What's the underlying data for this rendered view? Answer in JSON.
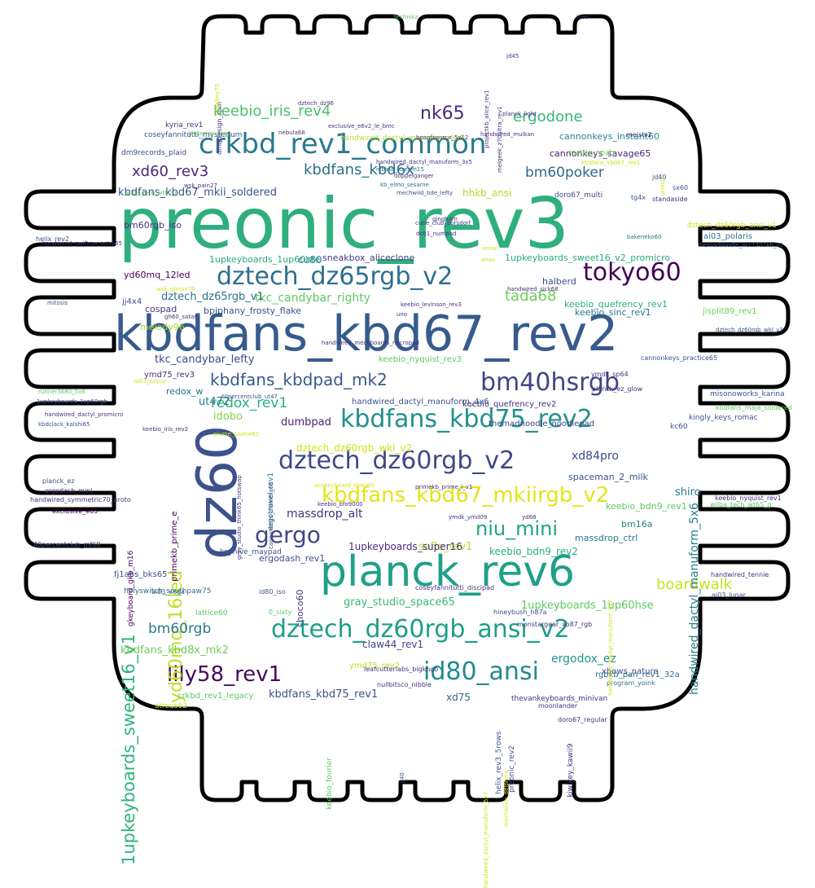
{
  "words": [
    {
      "text": "preonic_rev3",
      "color": "#2fae7e"
    },
    {
      "text": "kbdfans_kbd67_rev2",
      "color": "#375b8c"
    },
    {
      "text": "dz60",
      "color": "#3b528b"
    },
    {
      "text": "planck_rev6",
      "color": "#1fa088"
    },
    {
      "text": "crkbd_rev1_common",
      "color": "#2a788e"
    },
    {
      "text": "dztech_dz65rgb_v2",
      "color": "#2d6f8e"
    },
    {
      "text": "dztech_dz60rgb_v2",
      "color": "#3e4989"
    },
    {
      "text": "kbdfans_kbd75_rev2",
      "color": "#21918c"
    },
    {
      "text": "dztech_dz60rgb_ansi_v2",
      "color": "#1f9e89"
    },
    {
      "text": "id80_ansi",
      "color": "#228b8d"
    },
    {
      "text": "bm40hsrgb",
      "color": "#414487"
    },
    {
      "text": "tokyo60",
      "color": "#440154"
    },
    {
      "text": "kbdfans_kbd67_mkiirgb_v2",
      "color": "#e5e419"
    },
    {
      "text": "lily58_rev1",
      "color": "#46085c"
    },
    {
      "text": "yd60mq_16led",
      "color": "#bddf26"
    },
    {
      "text": "1upkeyboards_sweet16_v1",
      "color": "#2fb47c"
    },
    {
      "text": "kbdfans_kbdpad_mk2",
      "color": "#375a8c"
    },
    {
      "text": "gergo",
      "color": "#404688"
    },
    {
      "text": "niu_mini",
      "color": "#20a486"
    },
    {
      "text": "keebio_iris_rev4",
      "color": "#4ac16d"
    },
    {
      "text": "nk65",
      "color": "#472d7b"
    },
    {
      "text": "ergodone",
      "color": "#35b779"
    },
    {
      "text": "kbdfans_kbd6x",
      "color": "#2c728e"
    },
    {
      "text": "xd60_rev3",
      "color": "#482878"
    },
    {
      "text": "bm60poker",
      "color": "#31688e"
    },
    {
      "text": "tada68",
      "color": "#6ece58"
    },
    {
      "text": "redox_rev1",
      "color": "#29af7f"
    },
    {
      "text": "boardwalk",
      "color": "#c8e020"
    },
    {
      "text": "bm60rgb",
      "color": "#2a788e"
    },
    {
      "text": "handwired_dactyl_manuform_5x6",
      "color": "#26828e"
    },
    {
      "text": "kbdfans_kbd67_mkii_soldered",
      "color": "#3b528b"
    },
    {
      "text": "hhkb_ansi",
      "color": "#addc30"
    },
    {
      "text": "massdrop_alt",
      "color": "#46327e"
    },
    {
      "text": "sofle_rev1",
      "color": "#b5de2b"
    },
    {
      "text": "shiro",
      "color": "#2a768e"
    },
    {
      "text": "xd84pro",
      "color": "#3e4a89"
    },
    {
      "text": "dumbpad",
      "color": "#481f70"
    },
    {
      "text": "1upkeyboards_1up60hse",
      "color": "#5ec962"
    },
    {
      "text": "gray_studio_space65",
      "color": "#37b878"
    },
    {
      "text": "claw44_rev1",
      "color": "#414487"
    },
    {
      "text": "kbdfans_kbd75_rev1",
      "color": "#3b528b"
    },
    {
      "text": "kbdfans_kbd8x_mk2",
      "color": "#6ccd5a"
    },
    {
      "text": "ergodox_ez",
      "color": "#20928c"
    },
    {
      "text": "xd75",
      "color": "#31688e"
    },
    {
      "text": "ut472",
      "color": "#277f8e"
    },
    {
      "text": "idobo",
      "color": "#84d44b"
    },
    {
      "text": "tkc_candybar_lefty",
      "color": "#3e4a89"
    },
    {
      "text": "tkc_candybar_righty",
      "color": "#5ec962"
    },
    {
      "text": "dztech_dz65rgb_v1",
      "color": "#2c728e"
    },
    {
      "text": "keebio_bdn9_rev2",
      "color": "#29af7f"
    },
    {
      "text": "1upkeyboards_super16",
      "color": "#472c7a"
    },
    {
      "text": "ergodash_rev1",
      "color": "#3b518b"
    },
    {
      "text": "1upkeyboards_1up60hte",
      "color": "#24aa83"
    },
    {
      "text": "1upkeyboards_sweet16_v2_promicro",
      "color": "#27ad81"
    },
    {
      "text": "sneakbox_aliceclone",
      "color": "#443983"
    },
    {
      "text": "cu80",
      "color": "#287c8e"
    },
    {
      "text": "cannonkeys_instant60",
      "color": "#25848e"
    },
    {
      "text": "cannonkeys_savage65",
      "color": "#482173"
    },
    {
      "text": "keebio_quefrency_rev1",
      "color": "#27ad81"
    },
    {
      "text": "keebio_sinc_rev1",
      "color": "#2c738e"
    },
    {
      "text": "halberd",
      "color": "#3e4a89"
    },
    {
      "text": "bpiphany_frosty_flake",
      "color": "#3b518b"
    },
    {
      "text": "melody96",
      "color": "#a5db36"
    },
    {
      "text": "jj4x4",
      "color": "#3b528b"
    },
    {
      "text": "cospad",
      "color": "#46337e"
    },
    {
      "text": "yd60mq_12led",
      "color": "#440154"
    },
    {
      "text": "bm60rgb_iso",
      "color": "#46327e"
    },
    {
      "text": "primekb_prime_e",
      "color": "#440154"
    },
    {
      "text": "choco60",
      "color": "#46327e"
    },
    {
      "text": "spaceman_2_milk",
      "color": "#3b518b"
    },
    {
      "text": "massdrop_ctrl",
      "color": "#2a788e"
    },
    {
      "text": "bm16a",
      "color": "#277f8e"
    },
    {
      "text": "keebio_bdn9_rev1",
      "color": "#5ec962"
    },
    {
      "text": "kingly_keys_romac",
      "color": "#3b528b"
    },
    {
      "text": "misonoworks_karina",
      "color": "#3b528b"
    },
    {
      "text": "ai03_polaris",
      "color": "#2c728e"
    },
    {
      "text": "jisplit89_rev1",
      "color": "#6ece58"
    },
    {
      "text": "keebio_quefrency_rev2",
      "color": "#46327e"
    },
    {
      "text": "keebio_nyquist_rev3",
      "color": "#5ec962"
    },
    {
      "text": "handwired_dactyl_manuform_4x6",
      "color": "#3b528b"
    },
    {
      "text": "themadnoodle_noodlepad",
      "color": "#3e4a89"
    },
    {
      "text": "redox_w",
      "color": "#2c728e"
    },
    {
      "text": "ymd75_rev3",
      "color": "#46327e"
    },
    {
      "text": "ymd75_rev2",
      "color": "#bddf26"
    },
    {
      "text": "rgbkb_pan_rev1_32a",
      "color": "#2c728e"
    },
    {
      "text": "xbows_nature",
      "color": "#3e4a89"
    },
    {
      "text": "crkbd_rev1_legacy",
      "color": "#5ec962"
    },
    {
      "text": "fj1abs_bks65",
      "color": "#3b528b"
    },
    {
      "text": "holyswitch_southpaw75",
      "color": "#31688e"
    },
    {
      "text": "kyria_rev1",
      "color": "#46327e"
    },
    {
      "text": "doro67_multi",
      "color": "#3e4a89"
    },
    {
      "text": "matrix_noah",
      "color": "#6ece58"
    },
    {
      "text": "dm9records_plaid",
      "color": "#3e4a89"
    },
    {
      "text": "ergotravel_rev1",
      "color": "#2c728e"
    },
    {
      "text": "keyhive_maypad",
      "color": "#3b528b"
    },
    {
      "text": "gkeyboard_gkb_m16",
      "color": "#440154"
    },
    {
      "text": "coseyfannitutti_mysterium",
      "color": "#3b528b"
    },
    {
      "text": "dztech_dz60rgb_wkl_v2",
      "color": "#d2e21b"
    },
    {
      "text": "lattice60",
      "color": "#5ec962"
    },
    {
      "text": "atreus62",
      "color": "#b5de2b"
    },
    {
      "text": "preonic_rev2",
      "color": "#3b528b"
    },
    {
      "text": "keebio_fourier",
      "color": "#5ec962"
    },
    {
      "text": "kiwikey_kawii9",
      "color": "#46327e"
    },
    {
      "text": "helix_rev3_5rows",
      "color": "#3b528b"
    },
    {
      "text": "handwired_dactyl_manuform_6x6",
      "color": "#b5de2b"
    },
    {
      "text": "dztech_dz60rgb_ansi_v1",
      "color": "#d2e21b"
    },
    {
      "text": "thevankeyboards_minivan",
      "color": "#46327e"
    },
    {
      "text": "leafcutterlabs_bigknob",
      "color": "#46327e"
    },
    {
      "text": "nullbitsco_nibble",
      "color": "#46327e"
    },
    {
      "text": "program_yoink",
      "color": "#2c728e"
    },
    {
      "text": "moonlander",
      "color": "#46327e"
    },
    {
      "text": "doro67_regular",
      "color": "#46327e"
    },
    {
      "text": "kc60",
      "color": "#3b528b"
    },
    {
      "text": "planck_ez",
      "color": "#3b528b"
    },
    {
      "text": "ergodash_mini",
      "color": "#46327e"
    },
    {
      "text": "handwired_symmetric70_proto",
      "color": "#46327e"
    },
    {
      "text": "exclusive_e65",
      "color": "#440154"
    },
    {
      "text": "40percentclub_mf68",
      "color": "#3b528b"
    },
    {
      "text": "ai03_vega",
      "color": "#2c728e"
    },
    {
      "text": "id80_iso",
      "color": "#3b528b"
    },
    {
      "text": "0_sixty",
      "color": "#5ec962"
    },
    {
      "text": "hineybush_h87a",
      "color": "#3b528b"
    },
    {
      "text": "monstargear_xo87_rgb",
      "color": "#46327e"
    },
    {
      "text": "coseyfannitutti_discipad",
      "color": "#46327e"
    },
    {
      "text": "ymdk_sp64",
      "color": "#46327e"
    },
    {
      "text": "cannonkeys_practice65",
      "color": "#3b528b"
    },
    {
      "text": "ai03_lunar",
      "color": "#3b528b"
    },
    {
      "text": "handwired_tennie",
      "color": "#46327e"
    },
    {
      "text": "keebio_nyquist_rev1",
      "color": "#46327e"
    },
    {
      "text": "wilba_tech_wt65_g",
      "color": "#5ec962"
    },
    {
      "text": "kbdfans_maja_soldered",
      "color": "#5ec962"
    },
    {
      "text": "planck_ez_glow",
      "color": "#46327e"
    },
    {
      "text": "sx60",
      "color": "#3b528b"
    },
    {
      "text": "standaside",
      "color": "#46327e"
    },
    {
      "text": "meishi2",
      "color": "#46327e"
    },
    {
      "text": "jd40",
      "color": "#3b528b"
    },
    {
      "text": "tg4x",
      "color": "#3b528b"
    },
    {
      "text": "kbdfans_kbd67_rev1",
      "color": "#d2e21b"
    },
    {
      "text": "unison",
      "color": "#d2e21b"
    },
    {
      "text": "bakeneko60",
      "color": "#2c728e"
    },
    {
      "text": "themadnoodle_ncc1701kb_v2",
      "color": "#3b528b"
    },
    {
      "text": "dztech_dz60rgb_wkl_v1",
      "color": "#3b528b"
    },
    {
      "text": "helix_rev2",
      "color": "#3b528b"
    },
    {
      "text": "handwired_swiftrax_astro65",
      "color": "#46327e"
    },
    {
      "text": "wsk_pain27",
      "color": "#46327e"
    },
    {
      "text": "wilba_tech_wt80_g",
      "color": "#5ec962"
    },
    {
      "text": "nebula68",
      "color": "#46327e"
    },
    {
      "text": "exclusive_e6v2_le_bmc",
      "color": "#46327e"
    },
    {
      "text": "boardsource_5x12",
      "color": "#46327e"
    },
    {
      "text": "handwired_mulkan",
      "color": "#46327e"
    },
    {
      "text": "nibiria_stream15",
      "color": "#2c728e"
    },
    {
      "text": "doppelganger",
      "color": "#46327e"
    },
    {
      "text": "kb_elmo_sesame",
      "color": "#2c728e"
    },
    {
      "text": "mechwild_bde_lefty",
      "color": "#3b528b"
    },
    {
      "text": "gingham",
      "color": "#46327e"
    },
    {
      "text": "cutie_club_borsdorf",
      "color": "#46327e"
    },
    {
      "text": "dc01_numpad",
      "color": "#46327e"
    },
    {
      "text": "arisu",
      "color": "#b5de2b"
    },
    {
      "text": "onoal",
      "color": "#d2e21b"
    },
    {
      "text": "handwired_sick68",
      "color": "#46327e"
    },
    {
      "text": "wsk_gonuo70",
      "color": "#d2e21b"
    },
    {
      "text": "mitosis",
      "color": "#3b528b"
    },
    {
      "text": "uno",
      "color": "#46327e"
    },
    {
      "text": "keebio_levinson_rev3",
      "color": "#46327e"
    },
    {
      "text": "gh60_satan",
      "color": "#46327e"
    },
    {
      "text": "handwired_mechboards_micropad",
      "color": "#46327e"
    },
    {
      "text": "ai03_soyuz",
      "color": "#d2e21b"
    },
    {
      "text": "runner3680_5x6",
      "color": "#5ec962"
    },
    {
      "text": "1upkeyboards_1up60rgb",
      "color": "#3b528b"
    },
    {
      "text": "handwired_dactyl_promicro",
      "color": "#46327e"
    },
    {
      "text": "kbdclack_kaishi65",
      "color": "#3b528b"
    },
    {
      "text": "keebio_iris_rev2",
      "color": "#46327e"
    },
    {
      "text": "40percentclub_ut47",
      "color": "#3b528b"
    },
    {
      "text": "plume_plume65",
      "color": "#d2e21b"
    },
    {
      "text": "primekb_prime_l_v1",
      "color": "#46327e"
    },
    {
      "text": "keebio_bfo9000",
      "color": "#46327e"
    },
    {
      "text": "acekeyboard_titan60",
      "color": "#d2e21b"
    },
    {
      "text": "ymdk_ymd09",
      "color": "#46327e"
    },
    {
      "text": "yd68",
      "color": "#46327e"
    },
    {
      "text": "technika",
      "color": "#5ec962"
    },
    {
      "text": "jnao",
      "color": "#46327e"
    },
    {
      "text": "jd45",
      "color": "#46327e"
    },
    {
      "text": "projectkb_alice_rev1",
      "color": "#46327e"
    },
    {
      "text": "melgeek_z70ultra_rev1",
      "color": "#46327e"
    },
    {
      "text": "dmqdesign_spin",
      "color": "#46327e"
    },
    {
      "text": "planck_light",
      "color": "#46327e"
    },
    {
      "text": "dztech_dz96",
      "color": "#46327e"
    },
    {
      "text": "bigseries_1key",
      "color": "#5ec962"
    },
    {
      "text": "plaidkey75",
      "color": "#d2e21b"
    },
    {
      "text": "handwired_dactyl_manuform_3x5",
      "color": "#46327e"
    },
    {
      "text": "gray_studio_think65_hotswap",
      "color": "#46327e"
    },
    {
      "text": "cannonkeys_chimera65",
      "color": "#3b528b"
    },
    {
      "text": "jj40",
      "color": "#3b528b"
    },
    {
      "text": "handwired_dactyl_manuform_5x7",
      "color": "#d2e21b"
    },
    {
      "text": "mechlovin_delphine",
      "color": "#d2e21b"
    },
    {
      "text": "handwired_dactyl_manuform_6x7",
      "color": "#d2e21b"
    }
  ]
}
